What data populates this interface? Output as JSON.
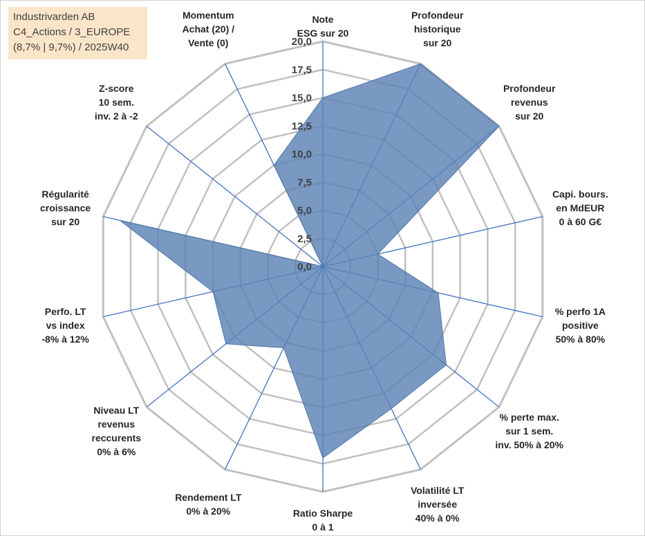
{
  "title_box": {
    "line1": "Industrivarden AB",
    "line2": "C4_Actions / 3_EUROPE",
    "line3": "(8,7% | 9,7%) / 2025W40"
  },
  "colors": {
    "grid": "#c0c0c0",
    "spoke": "#4472c4",
    "fill": "#5b82b4",
    "fill_opacity": "0.82",
    "title_bg": "#fbe5c8"
  },
  "chart_data": {
    "type": "radar",
    "title": "",
    "range": [
      0,
      20
    ],
    "ticks": [
      "0,0",
      "2,5",
      "5,0",
      "7,5",
      "10,0",
      "12,5",
      "15,0",
      "17,5",
      "20,0"
    ],
    "axes": [
      {
        "label": [
          "Note",
          "ESG sur 20"
        ],
        "value": 15.0
      },
      {
        "label": [
          "Profondeur",
          "historique",
          "sur 20"
        ],
        "value": 20.0
      },
      {
        "label": [
          "Profondeur",
          "revenus",
          "sur 20"
        ],
        "value": 20.0
      },
      {
        "label": [
          "Capi. bours.",
          "en MdEUR",
          "0 à 60 G€"
        ],
        "value": 5.0
      },
      {
        "label": [
          "% perfo 1A",
          "positive",
          "50% à 80%"
        ],
        "value": 10.5
      },
      {
        "label": [
          "% perte max.",
          "sur 1 sem.",
          "inv. 50% à 20%"
        ],
        "value": 14.0
      },
      {
        "label": [
          "Volatilité LT",
          "inversée",
          "40% à 0%"
        ],
        "value": 14.0
      },
      {
        "label": [
          "Ratio Sharpe",
          "0 à 1"
        ],
        "value": 17.0
      },
      {
        "label": [
          "Rendement LT",
          "0% à 20%"
        ],
        "value": 8.0
      },
      {
        "label": [
          "Niveau LT",
          "revenus",
          "reccurents",
          "0% à 6%"
        ],
        "value": 11.0
      },
      {
        "label": [
          "Perfo. LT",
          "vs index",
          "-8% à 12%"
        ],
        "value": 10.0
      },
      {
        "label": [
          "Régularité",
          "croissance",
          "sur 20"
        ],
        "value": 18.5
      },
      {
        "label": [
          "Z-score",
          "10 sem.",
          "inv. 2 à -2"
        ],
        "value": 0.0
      },
      {
        "label": [
          "Momentum",
          "Achat (20) /",
          "Vente (0)"
        ],
        "value": 10.0
      }
    ]
  }
}
